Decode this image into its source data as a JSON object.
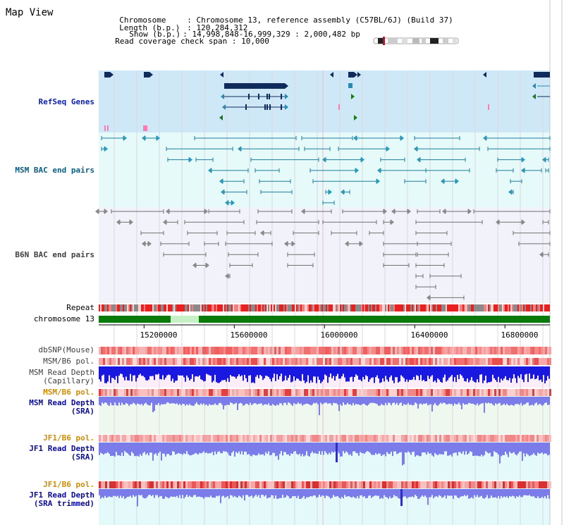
{
  "view": {
    "title": "Map View"
  },
  "info": {
    "chromosome_key": "Chromosome",
    "chromosome_value": "Chromosome 13, reference assembly (C57BL/6J) (Build 37)",
    "length_key": "Length (b.p.)",
    "length_value": "120,284,312",
    "show_key": "Show (b.p.)",
    "show_value": "14,998,848-16,999,329 : 2,000,482 bp",
    "span_key": "Read coverage check span",
    "span_value": "10,000"
  },
  "tracks": {
    "refseq": "RefSeq Genes",
    "msm_bac": "MSM BAC end pairs",
    "b6n_bac": "B6N BAC end pairs",
    "repeat": "Repeat",
    "chromosome": "chromosome 13",
    "dbsnp": "dbSNP(Mouse)",
    "msm_b6_pol_1": "MSM/B6 pol.",
    "msm_read_depth_cap_1": "MSM Read Depth",
    "msm_read_depth_cap_2": "(Capillary)",
    "msm_b6_pol_2": "MSM/B6 pol.",
    "msm_read_depth_sra_1": "MSM Read Depth",
    "msm_read_depth_sra_2": "(SRA)",
    "jf1_b6_pol_1": "JF1/B6 pol.",
    "jf1_read_depth_sra_1": "JF1 Read Depth",
    "jf1_read_depth_sra_2": "(SRA)",
    "jf1_b6_pol_2": "JF1/B6 pol.",
    "jf1_read_depth_trim_1": "JF1 Read Depth",
    "jf1_read_depth_trim_2": "(SRA trimmed)"
  },
  "axis": {
    "ticks": [
      "15200000",
      "15600000",
      "16000000",
      "16400000",
      "16800000"
    ],
    "tick_values": [
      15200000,
      15600000,
      16000000,
      16400000,
      16800000
    ],
    "range": [
      14998848,
      16999329
    ]
  },
  "colors": {
    "refseq_bg": "#cfe8f7",
    "msm_bg": "#e6fafa",
    "b6n_bg": "#f2f2fa",
    "gene": "#0f2b5b",
    "msm_pair": "#1f7d9e",
    "b6n_pair": "#707070",
    "chrom_green": "#0a7a0a",
    "read_blue": "#1818e0",
    "sra_blue": "#7b7bea"
  },
  "chart_data": {
    "type": "table",
    "x_range": [
      14998848,
      16999329
    ],
    "tick_values": [
      15200000,
      15600000,
      16000000,
      16400000,
      16800000
    ]
  }
}
